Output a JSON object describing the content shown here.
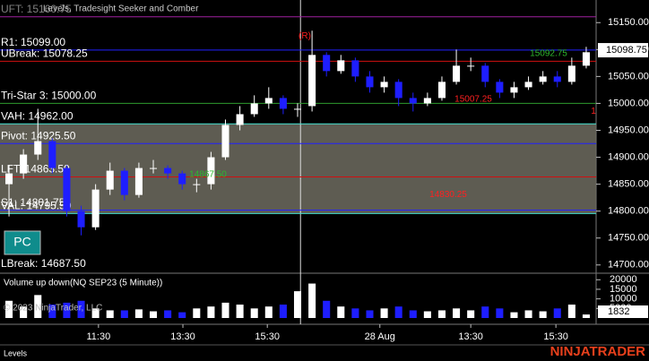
{
  "chart_data": {
    "type": "candlestick",
    "title": "Levels, Tradesight Seeker and Comber",
    "x": [
      0,
      1,
      2,
      3,
      4,
      5,
      6,
      7,
      8,
      9,
      10,
      11,
      12,
      13,
      14,
      15,
      16,
      17,
      18,
      19,
      20,
      21,
      22,
      23,
      24,
      25,
      26,
      27,
      28,
      29,
      30,
      31,
      32,
      33,
      34,
      35,
      36,
      37,
      38,
      39,
      40
    ],
    "open": [
      14850,
      14870,
      14905,
      14930,
      14880,
      14800,
      14770,
      14840,
      14875,
      14830,
      14880,
      14880,
      14870,
      14850,
      14850,
      14900,
      14960,
      14980,
      15000,
      15010,
      14990,
      14995,
      15090,
      15060,
      15080,
      15050,
      15030,
      15040,
      15010,
      15000,
      15010,
      15040,
      15070,
      15070,
      15040,
      15020,
      15030,
      15040,
      15050,
      15040,
      15070
    ],
    "high": [
      14885,
      14915,
      14990,
      14935,
      14885,
      14810,
      14850,
      14890,
      14880,
      14890,
      14895,
      14885,
      14875,
      14860,
      14910,
      14970,
      14995,
      15015,
      15030,
      15015,
      15000,
      15135,
      15095,
      15090,
      15085,
      15060,
      15050,
      15045,
      15020,
      15020,
      15050,
      15100,
      15085,
      15075,
      15045,
      15040,
      15050,
      15060,
      15060,
      15085,
      15105
    ],
    "low": [
      14790,
      14860,
      14895,
      14870,
      14790,
      14755,
      14765,
      14830,
      14820,
      14825,
      14870,
      14860,
      14840,
      14835,
      14840,
      14895,
      14950,
      14975,
      14990,
      14980,
      14975,
      14985,
      15050,
      15055,
      15040,
      15020,
      15020,
      14995,
      14985,
      14995,
      15005,
      15035,
      15060,
      15030,
      15010,
      15010,
      15025,
      15035,
      15030,
      15035,
      15065
    ],
    "close": [
      14870,
      14905,
      14930,
      14880,
      14800,
      14770,
      14840,
      14875,
      14830,
      14880,
      14880,
      14870,
      14850,
      14850,
      14900,
      14960,
      14980,
      15000,
      15010,
      14990,
      14990,
      15090,
      15060,
      15080,
      15050,
      15030,
      15040,
      15010,
      15000,
      15010,
      15040,
      15070,
      15070,
      15040,
      15020,
      15030,
      15040,
      15050,
      15040,
      15070,
      15095
    ],
    "up_color": "#ffffff",
    "down_color": "#1e1eff",
    "xlim": [
      -0.5,
      40.5
    ],
    "xticks": [
      {
        "value": 6.2,
        "label": "11:30"
      },
      {
        "value": 12.05,
        "label": "13:30"
      },
      {
        "value": 17.9,
        "label": "15:30"
      },
      {
        "value": 25.7,
        "label": "28 Aug"
      },
      {
        "value": 32,
        "label": "13:30"
      },
      {
        "value": 37.9,
        "label": "15:30"
      }
    ],
    "session_break": 20.2,
    "ylim": [
      14688,
      15192
    ],
    "yticks": [
      {
        "value": 14700,
        "label": "14700.00"
      },
      {
        "value": 14750,
        "label": "14750.00"
      },
      {
        "value": 14800,
        "label": "14800.00"
      },
      {
        "value": 14850,
        "label": "14850.00"
      },
      {
        "value": 14900,
        "label": "14900.00"
      },
      {
        "value": 14950,
        "label": "14950.00"
      },
      {
        "value": 15000,
        "label": "15000.00"
      },
      {
        "value": 15050,
        "label": "15050.00"
      },
      {
        "value": 15100,
        "label": "15100.00"
      },
      {
        "value": 15150,
        "label": "15150.00"
      }
    ],
    "last_price": 15098.75,
    "levels": [
      {
        "label": "UFT: 15160.75",
        "value": 15160.75,
        "color": "#a020a0"
      },
      {
        "label": "R1: 15099.00",
        "value": 15099,
        "color": "#2020ff"
      },
      {
        "label": "UBreak: 15078.25",
        "value": 15078.25,
        "color": "#d01010"
      },
      {
        "label": "Tri-Star 3: 15000.00",
        "value": 15000,
        "color": "#2e9b2e"
      },
      {
        "label": "VAH: 14962.00",
        "value": 14962,
        "color": "#40e0d0"
      },
      {
        "label": "Pivot: 14925.50",
        "value": 14925.5,
        "color": "#2020ff"
      },
      {
        "label": "LFT: 14863.50",
        "value": 14863.5,
        "color": "#d01010"
      },
      {
        "label": "S1: 14801.75",
        "value": 14801.75,
        "color": "#2020ff"
      },
      {
        "label": "VAL: 14795.50",
        "value": 14795.5,
        "color": "#40e0d0"
      },
      {
        "label": "LBreak: 14687.50",
        "value": 14687.5,
        "color": "#d01010"
      }
    ],
    "annotations": [
      {
        "label": "15092.75",
        "value": 15092.75,
        "color": "#2db82d"
      },
      {
        "label": "15007.25",
        "value": 15007.25,
        "color": "#ff2020"
      },
      {
        "label": "14867.50",
        "value": 14867.5,
        "color": "#2db82d"
      },
      {
        "label": "14830.25",
        "value": 14830.25,
        "color": "#ff2020"
      },
      {
        "label": "(R)",
        "value": 15125,
        "color": "#ff2020"
      },
      {
        "label": "1",
        "value": 14985,
        "color": "#ff2020"
      }
    ],
    "button": "PC",
    "copyright": "© 2023 NinjaTrader, LLC",
    "volume": {
      "title": "Volume up down(NQ SEP23 (5 Minute))",
      "values": [
        9000,
        6000,
        12000,
        7000,
        8000,
        9000,
        5000,
        4000,
        4000,
        4500,
        3500,
        4000,
        3000,
        5000,
        6000,
        8000,
        7000,
        5000,
        6000,
        7000,
        14000,
        18000,
        9000,
        6000,
        5000,
        4000,
        5000,
        6000,
        4000,
        3500,
        4000,
        5000,
        4000,
        6000,
        5000,
        3000,
        4000,
        3500,
        5000,
        7000,
        1832
      ],
      "ylim": [
        0,
        22000
      ],
      "yticks": [
        5000,
        10000,
        15000,
        20000
      ]
    },
    "tab": "Levels",
    "brand": "NINJATRADER"
  }
}
